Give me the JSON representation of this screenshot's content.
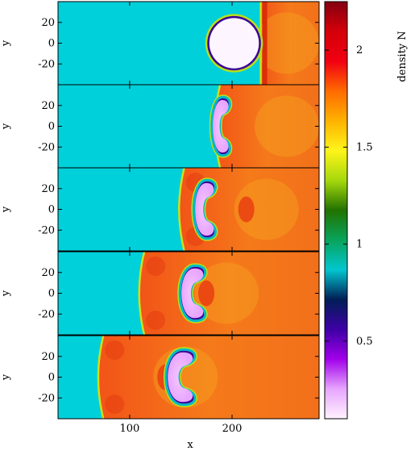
{
  "chart_data": {
    "type": "heatmap",
    "xlabel": "x",
    "ylabel": "y",
    "colorbar_label": "density N",
    "xlim": [
      30,
      285
    ],
    "ylim": [
      -40,
      40
    ],
    "x_ticks": [
      100,
      200
    ],
    "y_ticks": [
      20,
      0,
      -20
    ],
    "colorbar": {
      "range": [
        0.1,
        2.25
      ],
      "ticks": [
        2,
        1.5,
        1,
        0.5
      ],
      "colors": [
        "#fff2ff",
        "#e7a6ff",
        "#a100e9",
        "#3e00a6",
        "#001e56",
        "#02c6cf",
        "#08a35b",
        "#227200",
        "#a5d80c",
        "#fff41a",
        "#ffb200",
        "#ff6a00",
        "#f10012",
        "#d30009",
        "#840010"
      ]
    },
    "background_density": 1.0,
    "panels": [
      {
        "index": 1,
        "shock_x": 228,
        "cloud": {
          "shape": "circle",
          "cx": 202,
          "cy": 0,
          "r": 25
        }
      },
      {
        "index": 2,
        "shock_x": 182,
        "cloud": {
          "shape": "crescent",
          "cx": 188,
          "cy": 0
        }
      },
      {
        "index": 3,
        "shock_x": 147,
        "cloud": {
          "shape": "crescent",
          "cx": 172,
          "cy": 0
        }
      },
      {
        "index": 4,
        "shock_x": 108,
        "cloud": {
          "shape": "crescent",
          "cx": 160,
          "cy": 0
        }
      },
      {
        "index": 5,
        "shock_x": 68,
        "cloud": {
          "shape": "crescent",
          "cx": 148,
          "cy": 0
        }
      }
    ]
  }
}
